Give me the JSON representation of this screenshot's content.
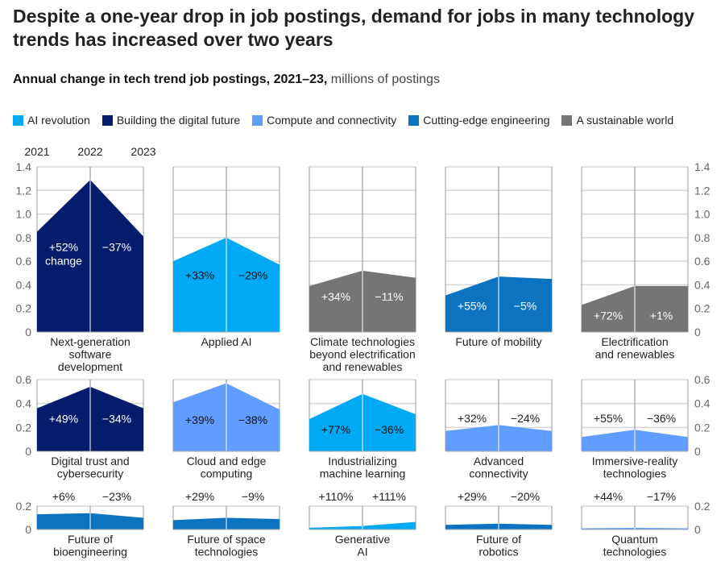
{
  "title": "Despite a one-year drop in job postings, demand for jobs in many technology trends has increased over two years",
  "subtitle": {
    "bold": "Annual change in tech trend job postings, 2021–23,",
    "unit": "millions of postings"
  },
  "legend": [
    {
      "key": "ai",
      "label": "AI revolution",
      "color": "#00a9f4"
    },
    {
      "key": "digital",
      "label": "Building the digital future",
      "color": "#051c6c"
    },
    {
      "key": "compute",
      "label": "Compute and connectivity",
      "color": "#5f9dff"
    },
    {
      "key": "engineering",
      "label": "Cutting-edge engineering",
      "color": "#0b73bf"
    },
    {
      "key": "sustainable",
      "label": "A sustainable world",
      "color": "#757575"
    }
  ],
  "chart_data": {
    "type": "area",
    "x": [
      "2021",
      "2022",
      "2023"
    ],
    "ylabel": "millions of postings",
    "grid": true,
    "legend_placement": "top",
    "rows": [
      {
        "ylim": [
          0,
          1.4
        ],
        "ticks": [
          "0",
          "0.2",
          "0.4",
          "0.6",
          "0.8",
          "1.0",
          "1.2",
          "1.4"
        ],
        "tick_values": [
          0,
          0.2,
          0.4,
          0.6,
          0.8,
          1.0,
          1.2,
          1.4
        ],
        "panels": [
          {
            "name": "Next-generation software development",
            "lines": [
              "Next-generation",
              "software",
              "development"
            ],
            "category": "digital",
            "values": [
              0.85,
              1.29,
              0.81
            ],
            "change_1": "+52%",
            "change_1_note": "change",
            "change_2": "−37%",
            "label_position": "inside"
          },
          {
            "name": "Applied AI",
            "lines": [
              "Applied AI"
            ],
            "category": "ai",
            "values": [
              0.6,
              0.8,
              0.57
            ],
            "change_1": "+33%",
            "change_2": "−29%",
            "label_position": "inside"
          },
          {
            "name": "Climate technologies beyond electrification and renewables",
            "lines": [
              "Climate technologies",
              "beyond electrification",
              "and renewables"
            ],
            "category": "sustainable",
            "values": [
              0.39,
              0.52,
              0.46
            ],
            "change_1": "+34%",
            "change_2": "−11%",
            "label_position": "inside"
          },
          {
            "name": "Future of mobility",
            "lines": [
              "Future of mobility"
            ],
            "category": "engineering",
            "values": [
              0.31,
              0.47,
              0.45
            ],
            "change_1": "+55%",
            "change_2": "−5%",
            "label_position": "inside"
          },
          {
            "name": "Electrification and renewables",
            "lines": [
              "Electrification",
              "and renewables"
            ],
            "category": "sustainable",
            "values": [
              0.23,
              0.39,
              0.39
            ],
            "change_1": "+72%",
            "change_2": "+1%",
            "label_position": "inside"
          }
        ]
      },
      {
        "ylim": [
          0,
          0.6
        ],
        "ticks": [
          "0",
          "0.2",
          "0.4",
          "0.6"
        ],
        "tick_values": [
          0,
          0.2,
          0.4,
          0.6
        ],
        "panels": [
          {
            "name": "Digital trust and cybersecurity",
            "lines": [
              "Digital trust and",
              "cybersecurity"
            ],
            "category": "digital",
            "values": [
              0.36,
              0.54,
              0.36
            ],
            "change_1": "+49%",
            "change_2": "−34%",
            "label_position": "inside"
          },
          {
            "name": "Cloud and edge computing",
            "lines": [
              "Cloud and edge",
              "computing"
            ],
            "category": "compute",
            "values": [
              0.41,
              0.57,
              0.35
            ],
            "change_1": "+39%",
            "change_2": "−38%",
            "label_position": "inside"
          },
          {
            "name": "Industrializing machine learning",
            "lines": [
              "Industrializing",
              "machine learning"
            ],
            "category": "ai",
            "values": [
              0.27,
              0.48,
              0.31
            ],
            "change_1": "+77%",
            "change_2": "−36%",
            "label_position": "inside"
          },
          {
            "name": "Advanced connectivity",
            "lines": [
              "Advanced",
              "connectivity"
            ],
            "category": "compute",
            "values": [
              0.17,
              0.22,
              0.17
            ],
            "change_1": "+32%",
            "change_2": "−24%",
            "label_position": "above"
          },
          {
            "name": "Immersive-reality technologies",
            "lines": [
              "Immersive-reality",
              "technologies"
            ],
            "category": "compute",
            "values": [
              0.12,
              0.18,
              0.12
            ],
            "change_1": "+55%",
            "change_2": "−36%",
            "label_position": "above"
          }
        ]
      },
      {
        "ylim": [
          0,
          0.2
        ],
        "ticks": [
          "0",
          "0.2"
        ],
        "tick_values": [
          0,
          0.2
        ],
        "panels": [
          {
            "name": "Future of bioengineering",
            "lines": [
              "Future of",
              "bioengineering"
            ],
            "category": "engineering",
            "values": [
              0.13,
              0.14,
              0.1
            ],
            "change_1": "+6%",
            "change_2": "−23%",
            "label_position": "top"
          },
          {
            "name": "Future of space technologies",
            "lines": [
              "Future of space",
              "technologies"
            ],
            "category": "engineering",
            "values": [
              0.08,
              0.1,
              0.09
            ],
            "change_1": "+29%",
            "change_2": "−9%",
            "label_position": "top"
          },
          {
            "name": "Generative AI",
            "lines": [
              "Generative",
              "AI"
            ],
            "category": "ai",
            "values": [
              0.015,
              0.03,
              0.065
            ],
            "change_1": "+110%",
            "change_2": "+111%",
            "label_position": "top"
          },
          {
            "name": "Future of robotics",
            "lines": [
              "Future of",
              "robotics"
            ],
            "category": "engineering",
            "values": [
              0.04,
              0.05,
              0.04
            ],
            "change_1": "+29%",
            "change_2": "−20%",
            "label_position": "top"
          },
          {
            "name": "Quantum technologies",
            "lines": [
              "Quantum",
              "technologies"
            ],
            "category": "compute",
            "values": [
              0.01,
              0.015,
              0.01
            ],
            "change_1": "+44%",
            "change_2": "−17%",
            "label_position": "top"
          }
        ]
      }
    ]
  }
}
